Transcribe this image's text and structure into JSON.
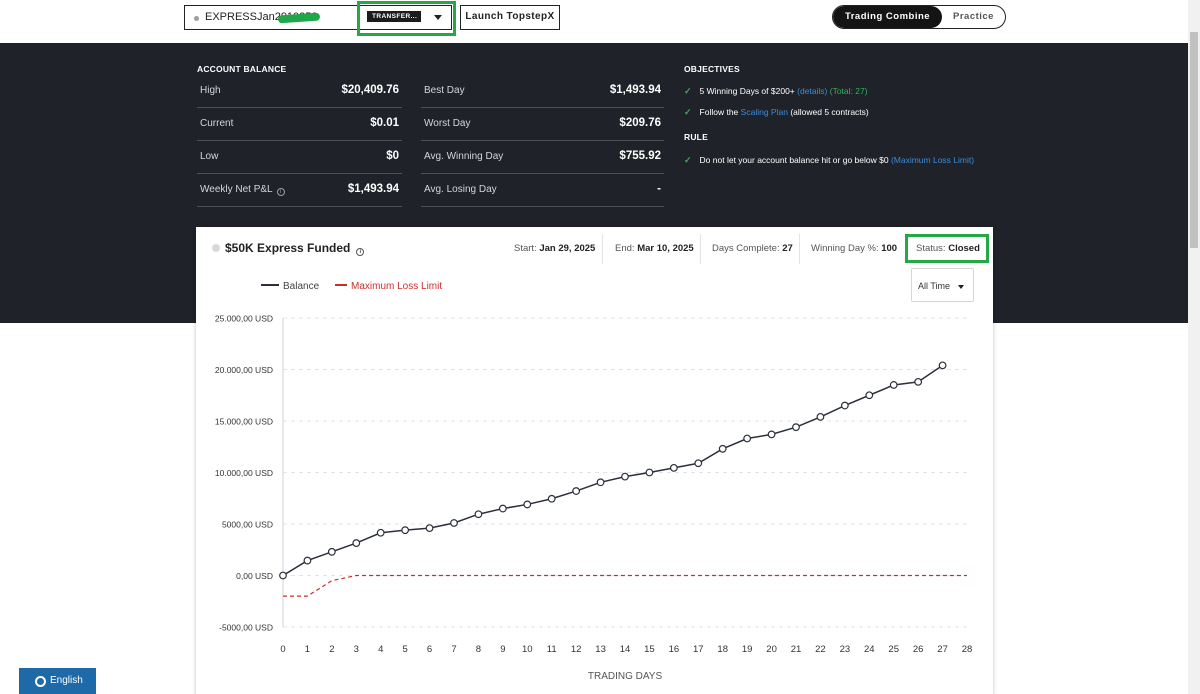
{
  "header": {
    "account_name": "EXPRESSJan2910258",
    "transfer_badge": "TRANSFER...",
    "launch_button": "Launch TopstepX",
    "modes": [
      "Trading Combine",
      "Practice"
    ]
  },
  "account_balance": {
    "title": "ACCOUNT BALANCE",
    "rows": [
      {
        "label": "High",
        "value": "$20,409.76"
      },
      {
        "label": "Current",
        "value": "$0.01"
      },
      {
        "label": "Low",
        "value": "$0"
      },
      {
        "label": "Weekly Net P&L",
        "value": "$1,493.94"
      }
    ]
  },
  "day_stats": {
    "rows": [
      {
        "label": "Best Day",
        "value": "$1,493.94"
      },
      {
        "label": "Worst Day",
        "value": "$209.76"
      },
      {
        "label": "Avg. Winning Day",
        "value": "$755.92"
      },
      {
        "label": "Avg. Losing Day",
        "value": "-"
      }
    ]
  },
  "objectives": {
    "title": "OBJECTIVES",
    "item1_text": "5 Winning Days of $200+",
    "item1_details": "(details)",
    "item1_total": "(Total: 27)",
    "item2_pre": "Follow the",
    "item2_link": "Scaling Plan",
    "item2_post": "(allowed 5 contracts)"
  },
  "rule": {
    "title": "RULE",
    "text": "Do not let your account balance hit or go below $0",
    "link": "(Maximum Loss Limit)"
  },
  "card": {
    "title": "$50K Express Funded",
    "start_label": "Start:",
    "start_value": "Jan 29, 2025",
    "end_label": "End:",
    "end_value": "Mar 10, 2025",
    "days_label": "Days Complete:",
    "days_value": "27",
    "winpct_label": "Winning Day %:",
    "winpct_value": "100",
    "status_label": "Status:",
    "status_value": "Closed",
    "legend_balance": "Balance",
    "legend_mll": "Maximum Loss Limit",
    "range_selected": "All Time"
  },
  "chart_data": {
    "type": "line",
    "xlabel": "TRADING DAYS",
    "ylabel": "",
    "x": [
      0,
      1,
      2,
      3,
      4,
      5,
      6,
      7,
      8,
      9,
      10,
      11,
      12,
      13,
      14,
      15,
      16,
      17,
      18,
      19,
      20,
      21,
      22,
      23,
      24,
      25,
      26,
      27
    ],
    "xlim": [
      0,
      28
    ],
    "ylim": [
      -5000,
      25000
    ],
    "yticks": [
      25000,
      20000,
      15000,
      10000,
      5000,
      0,
      -5000
    ],
    "ytick_labels": [
      "25.000,00 USD",
      "20.000,00 USD",
      "15.000,00 USD",
      "10.000,00 USD",
      "5000,00 USD",
      "0,00 USD",
      "-5000,00 USD"
    ],
    "grid": true,
    "legend": "top-left",
    "series": [
      {
        "name": "Balance",
        "color": "#2b303a",
        "values": [
          0,
          1450,
          2300,
          3150,
          4150,
          4400,
          4600,
          5100,
          5950,
          6500,
          6900,
          7450,
          8200,
          9050,
          9600,
          10000,
          10450,
          10900,
          12300,
          13300,
          13700,
          14400,
          15400,
          16500,
          17500,
          18500,
          18800,
          20400
        ]
      },
      {
        "name": "Maximum Loss Limit",
        "color": "#c9302c",
        "x": [
          0,
          1,
          2,
          3,
          28
        ],
        "values": [
          -2000,
          -2000,
          -500,
          0,
          0
        ]
      }
    ]
  },
  "language": {
    "label": "English"
  }
}
